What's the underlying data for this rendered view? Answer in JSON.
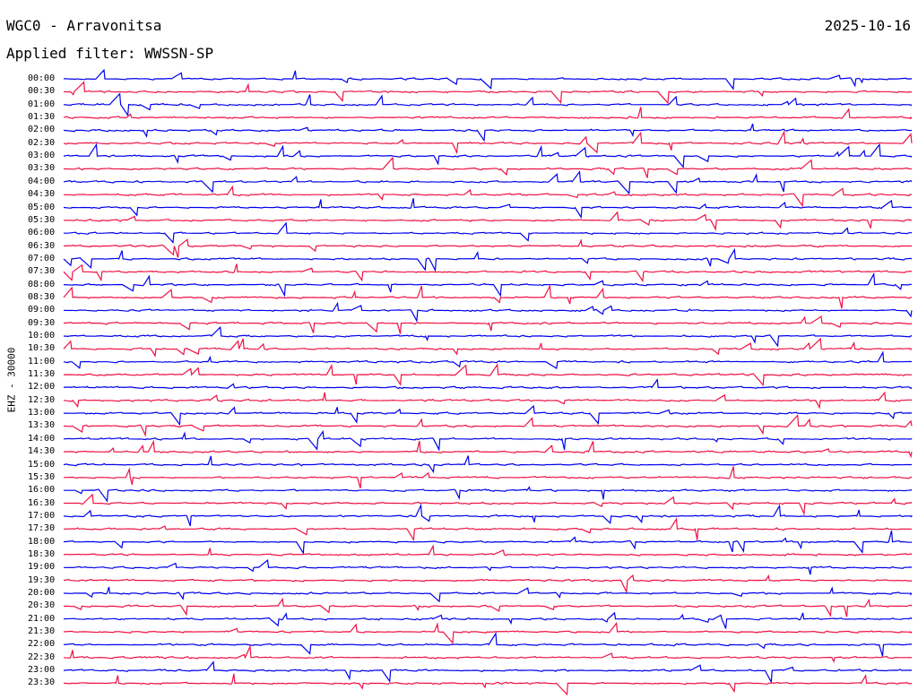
{
  "header": {
    "station": "WGC0 - Arravonitsa",
    "date": "2025-10-16",
    "filter": "Applied filter: WWSSN-SP"
  },
  "channel_label": "EHZ - 30000",
  "colors": {
    "even_trace": "#0000ee",
    "odd_trace": "#ee1144",
    "background": "#ffffff"
  },
  "rows": [
    {
      "time": "00:00"
    },
    {
      "time": "00:30"
    },
    {
      "time": "01:00"
    },
    {
      "time": "01:30"
    },
    {
      "time": "02:00"
    },
    {
      "time": "02:30"
    },
    {
      "time": "03:00"
    },
    {
      "time": "03:30"
    },
    {
      "time": "04:00"
    },
    {
      "time": "04:30"
    },
    {
      "time": "05:00"
    },
    {
      "time": "05:30"
    },
    {
      "time": "06:00"
    },
    {
      "time": "06:30"
    },
    {
      "time": "07:00"
    },
    {
      "time": "07:30"
    },
    {
      "time": "08:00"
    },
    {
      "time": "08:30"
    },
    {
      "time": "09:00"
    },
    {
      "time": "09:30"
    },
    {
      "time": "10:00"
    },
    {
      "time": "10:30"
    },
    {
      "time": "11:00"
    },
    {
      "time": "11:30"
    },
    {
      "time": "12:00"
    },
    {
      "time": "12:30"
    },
    {
      "time": "13:00"
    },
    {
      "time": "13:30"
    },
    {
      "time": "14:00"
    },
    {
      "time": "14:30"
    },
    {
      "time": "15:00"
    },
    {
      "time": "15:30"
    },
    {
      "time": "16:00"
    },
    {
      "time": "16:30"
    },
    {
      "time": "17:00"
    },
    {
      "time": "17:30"
    },
    {
      "time": "18:00"
    },
    {
      "time": "18:30"
    },
    {
      "time": "19:00"
    },
    {
      "time": "19:30"
    },
    {
      "time": "20:00"
    },
    {
      "time": "20:30"
    },
    {
      "time": "21:00"
    },
    {
      "time": "21:30"
    },
    {
      "time": "22:00"
    },
    {
      "time": "22:30"
    },
    {
      "time": "23:00"
    },
    {
      "time": "23:30"
    }
  ]
}
